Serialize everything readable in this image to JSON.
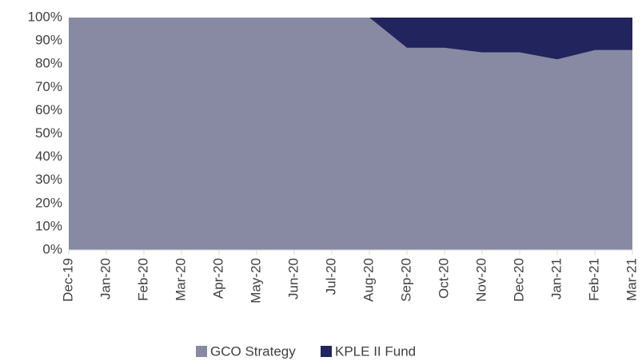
{
  "chart_data": {
    "type": "stacked_area",
    "categories": [
      "Dec-19",
      "Jan-20",
      "Feb-20",
      "Mar-20",
      "Apr-20",
      "May-20",
      "Jun-20",
      "Jul-20",
      "Aug-20",
      "Sep-20",
      "Oct-20",
      "Nov-20",
      "Dec-20",
      "Jan-21",
      "Feb-21",
      "Mar-21"
    ],
    "series": [
      {
        "name": "GCO Strategy",
        "color": "#878aa2",
        "values": [
          100,
          100,
          100,
          100,
          100,
          100,
          100,
          100,
          100,
          87,
          87,
          85,
          85,
          82,
          86,
          86
        ]
      },
      {
        "name": "KPLE II Fund",
        "color": "#22245e",
        "values": [
          0,
          0,
          0,
          0,
          0,
          0,
          0,
          0,
          0,
          13,
          13,
          15,
          15,
          18,
          14,
          14
        ]
      }
    ],
    "ylim": [
      0,
      100
    ],
    "yticks": [
      {
        "value": 0,
        "label": "0%"
      },
      {
        "value": 10,
        "label": "10%"
      },
      {
        "value": 20,
        "label": "20%"
      },
      {
        "value": 30,
        "label": "30%"
      },
      {
        "value": 40,
        "label": "40%"
      },
      {
        "value": 50,
        "label": "50%"
      },
      {
        "value": 60,
        "label": "60%"
      },
      {
        "value": 70,
        "label": "70%"
      },
      {
        "value": 80,
        "label": "80%"
      },
      {
        "value": 90,
        "label": "90%"
      },
      {
        "value": 100,
        "label": "100%"
      }
    ],
    "grid": false,
    "legend": "bottom"
  }
}
